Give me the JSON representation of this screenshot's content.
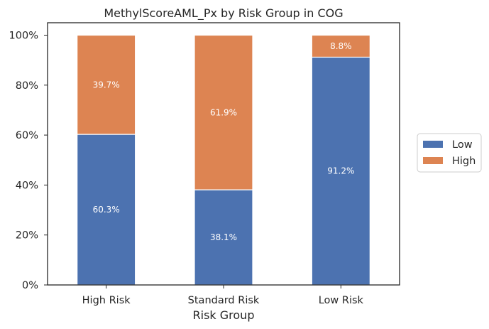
{
  "chart_data": {
    "type": "bar",
    "stacked": true,
    "title": "MethylScoreAML_Px by Risk Group in COG",
    "xlabel": "Risk Group",
    "ylabel": "",
    "ylim": [
      0,
      100
    ],
    "yticks": [
      "0%",
      "20%",
      "40%",
      "60%",
      "80%",
      "100%"
    ],
    "categories": [
      "High Risk",
      "Standard Risk",
      "Low Risk"
    ],
    "series": [
      {
        "name": "Low",
        "color": "#4c72b0",
        "values": [
          60.3,
          38.1,
          91.2
        ],
        "labels": [
          "60.3%",
          "38.1%",
          "91.2%"
        ]
      },
      {
        "name": "High",
        "color": "#dd8452",
        "values": [
          39.7,
          61.9,
          8.8
        ],
        "labels": [
          "39.7%",
          "61.9%",
          "8.8%"
        ]
      }
    ],
    "legend_position": "right",
    "grid": false
  }
}
